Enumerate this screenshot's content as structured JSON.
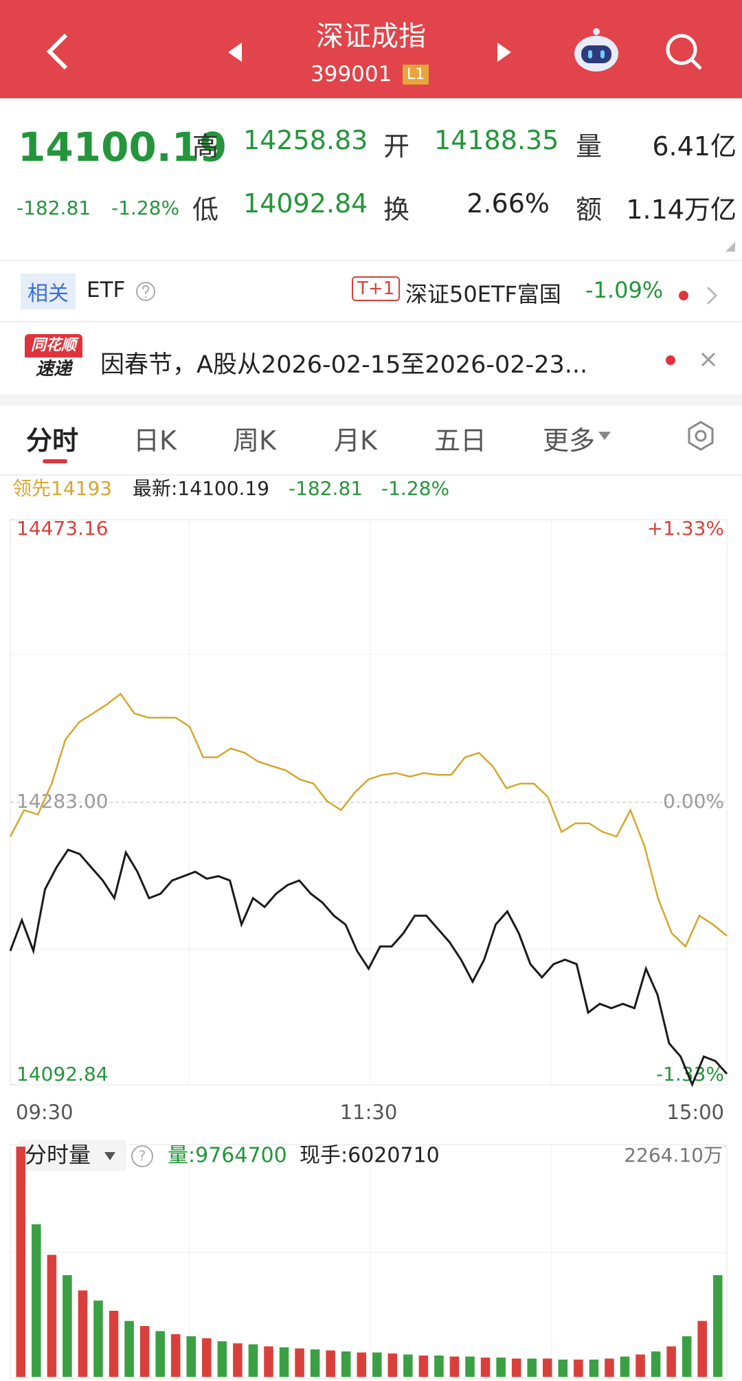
{
  "header": {
    "title": "深证成指",
    "code": "399001",
    "badge": "L1"
  },
  "quote": {
    "price": "14100.19",
    "change": "-182.81",
    "change_pct": "-1.28%",
    "stats": [
      [
        "高",
        "14258.83"
      ],
      [
        "开",
        "14188.35"
      ],
      [
        "量",
        "6.41亿"
      ],
      [
        "低",
        "14092.84"
      ],
      [
        "换",
        "2.66%"
      ],
      [
        "额",
        "1.14万亿"
      ]
    ]
  },
  "related": {
    "tag": "相关",
    "label": "ETF",
    "t1": "T+1",
    "name": "深证50ETF富国",
    "pct": "-1.09%"
  },
  "notice": {
    "logo": [
      "同花顺",
      "速递"
    ],
    "text": "因春节，A股从2026-02-15至2026-02-23..."
  },
  "tabs": [
    "分时",
    "日K",
    "周K",
    "月K",
    "五日",
    "更多"
  ],
  "info": {
    "change": "-182.81",
    "pct": "-1.28%"
  },
  "chart_data": [
    {
      "type": "line",
      "ylim": [
        14092.84,
        14473.16
      ],
      "yticks": [
        14473.16,
        {
          "value": 14283.0,
          "label": "14283.00"
        },
        14092.84
      ],
      "y2lim": [
        -1.33,
        1.33
      ],
      "y2ticks": [
        {
          "value": 1.33,
          "label": "+1.33%"
        },
        {
          "value": 0,
          "label": "0.00%"
        },
        {
          "value": -1.33,
          "label": "-1.33%"
        }
      ],
      "xticks": [
        "09:30",
        "11:30",
        "15:00"
      ],
      "series": [
        {
          "name": "领先14193",
          "color": "#d4a72c",
          "values": [
            14259.9,
            14277.7,
            14274.7,
            14295.5,
            14325.1,
            14336.9,
            14342.8,
            14348.8,
            14355.9,
            14342.8,
            14339.9,
            14339.9,
            14339.9,
            14334.0,
            14313.2,
            14313.2,
            14319.2,
            14316.2,
            14310.3,
            14307.3,
            14304.4,
            14298.4,
            14295.5,
            14283.6,
            14277.7,
            14289.5,
            14298.4,
            14301.4,
            14302.6,
            14300.2,
            14302.6,
            14301.4,
            14301.4,
            14313.2,
            14316.2,
            14307.3,
            14292.5,
            14295.5,
            14295.5,
            14286.6,
            14262.9,
            14268.8,
            14268.8,
            14262.9,
            14259.9,
            14277.7,
            14254.0,
            14218.4,
            14194.7,
            14185.9,
            14206.6,
            14200.7,
            14193
          ]
        },
        {
          "name": "最新:14100.19",
          "color": "#1a1a1a",
          "values": [
            14182.9,
            14203.6,
            14182.9,
            14224.4,
            14239.2,
            14251.0,
            14248.1,
            14239.2,
            14230.3,
            14218.4,
            14249.2,
            14236.2,
            14218.4,
            14221.4,
            14230.3,
            14233.2,
            14236.2,
            14231.5,
            14233.2,
            14230.3,
            14200.7,
            14218.4,
            14212.5,
            14221.4,
            14227.3,
            14230.3,
            14221.4,
            14215.5,
            14206.6,
            14200.7,
            14182.9,
            14171.0,
            14185.9,
            14185.9,
            14194.7,
            14206.6,
            14206.6,
            14197.7,
            14188.8,
            14177.0,
            14162.2,
            14177.0,
            14200.7,
            14209.5,
            14194.7,
            14174.0,
            14165.1,
            14174.0,
            14177.0,
            14174.0,
            14141.4,
            14147.3,
            14144.4,
            14147.3,
            14144.4,
            14171.0,
            14153.3,
            14120.7,
            14111.8,
            14093.0,
            14111.8,
            14108.8,
            14100.19
          ]
        }
      ]
    },
    {
      "type": "bar",
      "title": "分时量",
      "volume_label": "量:9764700",
      "hand_label": "现手:6020710",
      "ylim": [
        0,
        2264.1
      ],
      "yticks": [
        {
          "value": 2264.1,
          "label": "2264.10万"
        }
      ],
      "values": [
        2264,
        1500,
        1200,
        1000,
        850,
        750,
        650,
        550,
        500,
        450,
        420,
        400,
        380,
        350,
        330,
        320,
        300,
        290,
        280,
        270,
        260,
        250,
        240,
        240,
        230,
        220,
        210,
        210,
        200,
        200,
        190,
        190,
        180,
        180,
        180,
        170,
        170,
        170,
        180,
        200,
        220,
        250,
        300,
        400,
        550,
        1000
      ]
    }
  ]
}
